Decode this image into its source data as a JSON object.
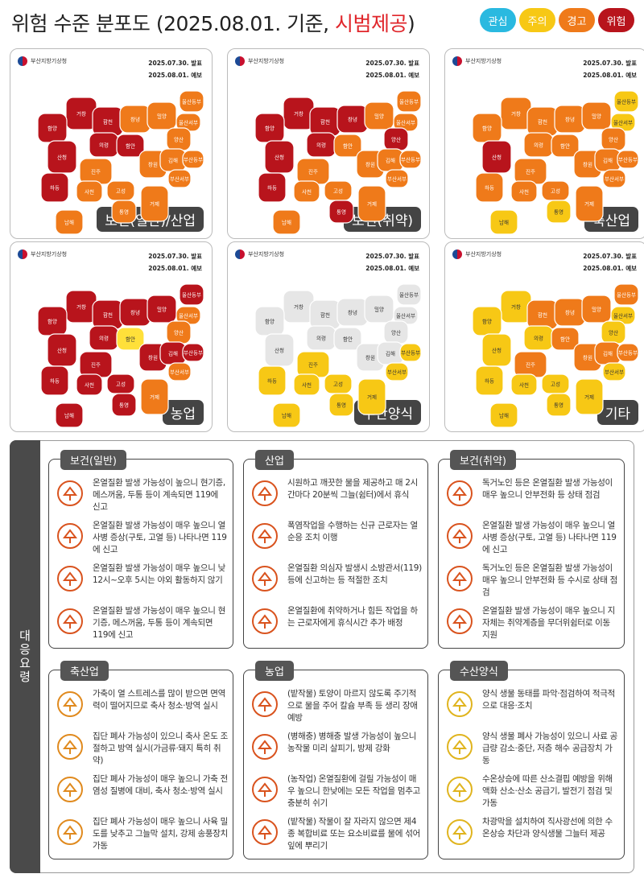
{
  "title": {
    "main": "위험 수준 분포도 (2025.08.01. 기준, ",
    "highlight": "시범제공",
    "end": ")"
  },
  "legend": [
    {
      "label": "관심",
      "color": "#2ab9e0"
    },
    {
      "label": "주의",
      "color": "#f7c815"
    },
    {
      "label": "경고",
      "color": "#ef7a1a"
    },
    {
      "label": "위험",
      "color": "#b8141c"
    }
  ],
  "maps": {
    "agency": "부산지방기상청",
    "date_issued": "2025.07.30. 발표",
    "date_forecast": "2025.08.01. 예보",
    "panels": [
      {
        "label": "보건(일반)/산업"
      },
      {
        "label": "보건(취약)"
      },
      {
        "label": "축산업"
      },
      {
        "label": "농업"
      },
      {
        "label": "수산양식"
      },
      {
        "label": "기타"
      }
    ]
  },
  "region_names": [
    "거창",
    "함양",
    "합천",
    "창녕",
    "밀양",
    "울산동부",
    "울산서부",
    "양산",
    "산청",
    "의령",
    "함안",
    "창원",
    "김해",
    "부산동부",
    "부산서부",
    "진주",
    "하동",
    "사천",
    "고성",
    "거제",
    "통영",
    "남해"
  ],
  "guide": {
    "tab_label": "대응요령",
    "cards": [
      {
        "title": "보건(일반)",
        "items": [
          {
            "icon": "phone-cross-icon",
            "text": "온열질환 발생 가능성이 높으니 현기증, 메스꺼움, 두통 등이 계속되면 119에 신고"
          },
          {
            "icon": "ambulance-icon",
            "text": "온열질환 발생 가능성이 매우 높으니 열사병 증상(구토, 고열 등) 나타나면 119에 신고"
          },
          {
            "icon": "no-outdoor-icon",
            "text": "온열질환 발생 가능성이 매우 높으니 낮 12시~오후 5시는 야외 활동하지 않기"
          },
          {
            "icon": "phone-cross-icon",
            "text": "온열질환 발생 가능성이 매우 높으니 현기증, 메스꺼움, 두통 등이 계속되면 119에 신고"
          }
        ]
      },
      {
        "title": "산업",
        "items": [
          {
            "icon": "sun-water-icon",
            "text": "시원하고 깨끗한 물을 제공하고 매 2시간마다 20분씩 그늘(쉼터)에서 휴식"
          },
          {
            "icon": "worker-sun-icon",
            "text": "폭염작업을 수행하는 신규 근로자는 열순응 조치 이행"
          },
          {
            "icon": "emergency-call-icon",
            "text": "온열질환 의심자 발생시 소방관서(119) 등에 신고하는 등 적절한 조치"
          },
          {
            "icon": "rest-alarm-icon",
            "text": "온열질환에 취약하거나 힘든 작업을 하는 근로자에게 휴식시간 추가 배정"
          }
        ]
      },
      {
        "title": "보건(취약)",
        "items": [
          {
            "icon": "checklist-person-icon",
            "text": "독거노인 등은 온열질환 발생 가능성이 매우 높으니 안부전화 등 상태 점검"
          },
          {
            "icon": "ambulance-icon",
            "text": "온열질환 발생 가능성이 매우 높으니 열사병 증상(구토, 고열 등) 나타나면 119에 신고"
          },
          {
            "icon": "checklist-person-icon",
            "text": "독거노인 등은 온열질환 발생 가능성이 매우 높으니 안부전화 등 수시로 상태 점검"
          },
          {
            "icon": "helper-elder-icon",
            "text": "온열질환 발생 가능성이 매우 높으니 지자체는 취약계층을 무더위쉼터로 이동 지원"
          }
        ]
      },
      {
        "title": "축산업",
        "items": [
          {
            "icon": "livestock-clean-icon",
            "text": "가축이 열 스트레스를 많이 받으면 면역력이 떨어지므로 축사 청소·방역 실시"
          },
          {
            "icon": "barn-thermometer-icon",
            "text": "집단 폐사 가능성이 있으니 축사 온도 조절하고 방역 실시(가금류·돼지 특히 취약)"
          },
          {
            "icon": "spray-worker-icon",
            "text": "집단 폐사 가능성이 매우 높으니 가축 전염성 질병에 대비, 축사 청소·방역 실시"
          },
          {
            "icon": "fan-icon",
            "text": "집단 폐사 가능성이 매우 높으니 사육 밀도를 낮추고 그늘막 설치, 강제 송풍장치 가동"
          }
        ]
      },
      {
        "title": "농업",
        "items": [
          {
            "icon": "sprinkler-icon",
            "text": "(밭작물) 토양이 마르지 않도록 주기적으로 물을 주어 칼슘 부족 등 생리 장애 예방"
          },
          {
            "icon": "pest-spray-icon",
            "text": "(병해충) 병해충 발생 가능성이 높으니 농작물 미리 살피기, 방제 강화"
          },
          {
            "icon": "no-farmwork-icon",
            "text": "(농작업) 온열질환에 걸릴 가능성이 매우 높으니 한낮에는 모든 작업을 멈추고 충분히 쉬기"
          },
          {
            "icon": "crop-spray-icon",
            "text": "(밭작물) 작물이 잘 자라지 않으면 제4종 복합비료 또는 요소비료를 물에 섞어 잎에 뿌리기"
          }
        ]
      },
      {
        "title": "수산양식",
        "items": [
          {
            "icon": "fish-search-icon",
            "text": "양식 생물 동태를 파악·점검하여 적극적으로 대응·조치"
          },
          {
            "icon": "feed-drop-icon",
            "text": "양식 생물 폐사 가능성이 있으니 사료 공급량 감소·중단, 저층 해수 공급장치 가동"
          },
          {
            "icon": "oxygen-tank-icon",
            "text": "수온상승에 따른 산소결핍 예방을 위해 액화 산소·산소 공급기, 발전기 점검 및 가동"
          },
          {
            "icon": "fish-shade-icon",
            "text": "차광막을 설치하여 직사광선에 의한 수온상승 차단과 양식생물 그늘터 제공"
          }
        ]
      }
    ]
  }
}
